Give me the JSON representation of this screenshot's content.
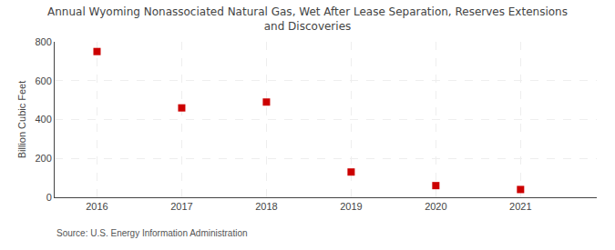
{
  "chart_data": {
    "type": "scatter",
    "title": "Annual Wyoming Nonassociated Natural Gas, Wet After Lease Separation, Reserves Extensions\nand Discoveries",
    "ylabel": "Billion Cubic Feet",
    "source": "Source: U.S. Energy Information Administration",
    "x": [
      2016,
      2017,
      2018,
      2019,
      2020,
      2021
    ],
    "values": [
      750,
      460,
      490,
      130,
      60,
      40
    ],
    "color": "#cc0000",
    "marker": "square",
    "xlim": [
      2015.5,
      2021.9
    ],
    "xticks": [
      2016,
      2017,
      2018,
      2019,
      2020,
      2021
    ],
    "ylim": [
      0,
      800
    ],
    "yticks": [
      0,
      200,
      400,
      600,
      800
    ],
    "grid": true
  }
}
